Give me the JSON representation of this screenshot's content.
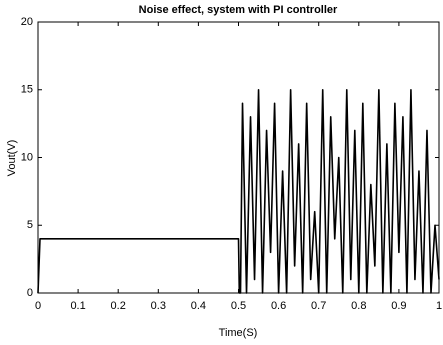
{
  "chart_data": {
    "type": "line",
    "title": "Noise effect, system with PI controller",
    "x_label": "Time(S)",
    "y_label": "Vout(V)",
    "x": [
      0,
      0.005,
      0.5,
      0.502,
      0.505,
      0.51,
      0.52,
      0.53,
      0.54,
      0.55,
      0.56,
      0.57,
      0.58,
      0.59,
      0.6,
      0.61,
      0.62,
      0.63,
      0.64,
      0.65,
      0.66,
      0.67,
      0.68,
      0.69,
      0.7,
      0.71,
      0.72,
      0.73,
      0.74,
      0.75,
      0.76,
      0.77,
      0.78,
      0.79,
      0.8,
      0.81,
      0.82,
      0.83,
      0.84,
      0.85,
      0.86,
      0.87,
      0.88,
      0.89,
      0.9,
      0.91,
      0.92,
      0.93,
      0.94,
      0.95,
      0.96,
      0.97,
      0.98,
      0.99,
      1.0
    ],
    "series": [
      {
        "color": "#000000",
        "values": [
          0,
          4,
          4,
          0,
          0,
          14,
          0,
          13,
          1,
          15,
          0,
          12,
          3,
          14,
          0,
          9,
          0,
          15,
          2,
          11,
          0,
          14,
          1,
          6,
          0,
          15,
          0,
          13,
          4,
          10,
          0,
          15,
          1,
          12,
          0,
          14,
          0,
          8,
          2,
          15,
          0,
          11,
          0,
          14,
          3,
          13,
          0,
          15,
          1,
          9,
          0,
          12,
          0,
          5,
          1
        ]
      }
    ],
    "xlim": [
      0,
      1
    ],
    "ylim": [
      0,
      20
    ],
    "xticks": [
      0,
      0.1,
      0.2,
      0.3,
      0.4,
      0.5,
      0.6,
      0.7,
      0.8,
      0.9,
      1
    ],
    "yticks": [
      0,
      5,
      10,
      15,
      20
    ]
  }
}
